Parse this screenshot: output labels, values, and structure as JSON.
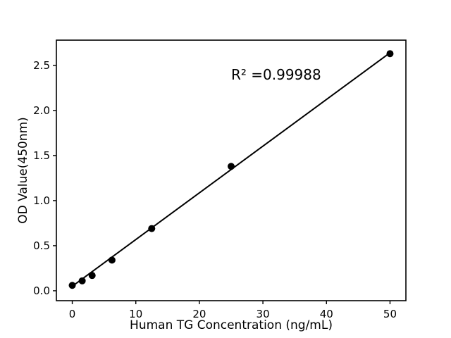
{
  "figure": {
    "background": "#ffffff",
    "foreground": "#000000"
  },
  "chart_data": {
    "type": "scatter",
    "title": "",
    "xlabel": "Human TG Concentration (ng/mL)",
    "ylabel": "OD Value(450nm)",
    "series": [
      {
        "name": "standard-points",
        "x": [
          0,
          1.5625,
          3.125,
          6.25,
          12.5,
          25,
          50
        ],
        "y": [
          0.06,
          0.11,
          0.17,
          0.34,
          0.69,
          1.38,
          2.63
        ],
        "marker": "circle",
        "marker_radius": 5,
        "color": "#000000"
      }
    ],
    "fit_line": {
      "x": [
        0,
        50
      ],
      "y": [
        0.05,
        2.64
      ],
      "color": "#000000",
      "width": 2
    },
    "annotation": {
      "text": "R² =0.99988",
      "x": 25,
      "y": 2.49
    },
    "xlim": [
      -2.5,
      52.5
    ],
    "ylim": [
      -0.11,
      2.78
    ],
    "xticks": {
      "values": [
        0,
        10,
        20,
        30,
        40,
        50
      ],
      "labels": [
        "0",
        "10",
        "20",
        "30",
        "40",
        "50"
      ]
    },
    "yticks": {
      "values": [
        0,
        0.5,
        1,
        1.5,
        2,
        2.5
      ],
      "labels": [
        "0.0",
        "0.5",
        "1.0",
        "1.5",
        "2.0",
        "2.5"
      ]
    },
    "grid": false,
    "legend_position": "none",
    "axes_color": "#000000",
    "background": "#ffffff"
  }
}
